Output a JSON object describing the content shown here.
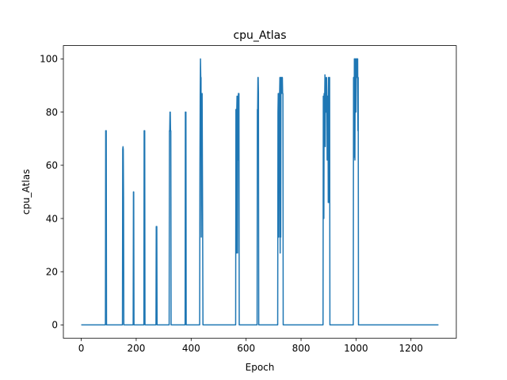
{
  "chart_data": {
    "type": "line",
    "title": "cpu_Atlas",
    "xlabel": "Epoch",
    "ylabel": "cpu_Atlas",
    "xlim": [
      -65,
      1365
    ],
    "ylim": [
      -5,
      105
    ],
    "xticks": [
      0,
      200,
      400,
      600,
      800,
      1000,
      1200
    ],
    "yticks": [
      0,
      20,
      40,
      60,
      80,
      100
    ],
    "grid": false,
    "series": [
      {
        "color": "#1f77b4",
        "x": [
          0,
          88,
          89,
          90,
          91,
          92,
          150,
          151,
          152,
          153,
          154,
          155,
          189,
          190,
          191,
          192,
          228,
          229,
          230,
          231,
          232,
          272,
          273,
          274,
          275,
          276,
          320,
          321,
          322,
          323,
          324,
          325,
          326,
          327,
          378,
          379,
          380,
          381,
          382,
          431,
          432,
          433,
          434,
          435,
          436,
          437,
          438,
          439,
          440,
          441,
          442,
          443,
          444,
          445,
          562,
          563,
          564,
          565,
          566,
          567,
          568,
          569,
          570,
          571,
          572,
          573,
          574,
          575,
          576,
          640,
          641,
          642,
          643,
          644,
          645,
          646,
          715,
          716,
          717,
          718,
          719,
          720,
          721,
          722,
          723,
          724,
          725,
          726,
          727,
          728,
          729,
          730,
          731,
          732,
          733,
          734,
          735,
          880,
          881,
          882,
          883,
          884,
          885,
          886,
          887,
          888,
          889,
          890,
          891,
          892,
          893,
          894,
          895,
          896,
          897,
          898,
          899,
          900,
          901,
          902,
          903,
          904,
          905,
          906,
          907,
          990,
          991,
          992,
          993,
          994,
          995,
          996,
          997,
          998,
          999,
          1000,
          1001,
          1002,
          1003,
          1004,
          1005,
          1006,
          1007,
          1008,
          1009,
          1010,
          1011,
          1012,
          1013,
          1014,
          1015,
          1300
        ],
        "y": [
          0,
          0,
          73,
          73,
          73,
          0,
          0,
          66,
          67,
          66,
          48,
          0,
          0,
          50,
          50,
          0,
          0,
          73,
          73,
          73,
          0,
          0,
          37,
          37,
          37,
          0,
          0,
          73,
          73,
          80,
          80,
          73,
          73,
          0,
          0,
          80,
          80,
          80,
          0,
          0,
          60,
          87,
          100,
          93,
          93,
          33,
          87,
          80,
          87,
          60,
          33,
          0,
          0,
          0,
          0,
          81,
          81,
          27,
          81,
          86,
          86,
          27,
          86,
          62,
          87,
          87,
          87,
          0,
          0,
          0,
          81,
          81,
          93,
          93,
          87,
          0,
          0,
          80,
          87,
          87,
          33,
          87,
          80,
          87,
          93,
          27,
          93,
          33,
          93,
          93,
          87,
          93,
          93,
          93,
          87,
          87,
          0,
          0,
          86,
          86,
          40,
          87,
          87,
          86,
          94,
          67,
          93,
          86,
          80,
          86,
          93,
          87,
          62,
          86,
          86,
          86,
          46,
          93,
          93,
          93,
          46,
          93,
          0,
          0,
          0,
          0,
          93,
          93,
          63,
          100,
          100,
          62,
          93,
          100,
          100,
          80,
          100,
          100,
          100,
          93,
          100,
          100,
          73,
          93,
          0,
          0,
          0,
          0,
          0,
          0,
          0,
          0
        ]
      }
    ]
  }
}
